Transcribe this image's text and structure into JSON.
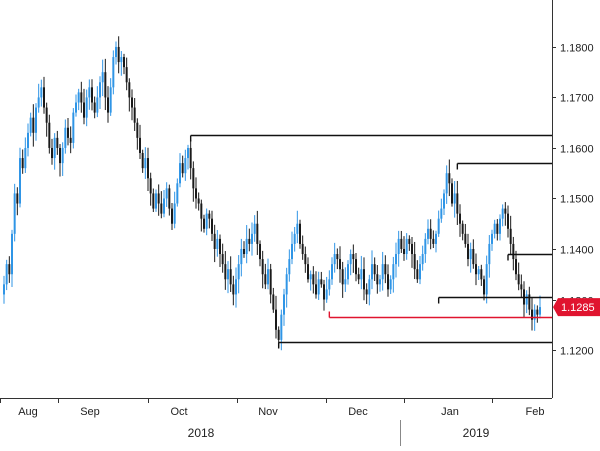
{
  "chart_data": {
    "type": "candlestick",
    "instrument_price_label": "1.1285",
    "current_price": 1.1285,
    "y_ticks": [
      "1.1800",
      "1.1700",
      "1.1600",
      "1.1500",
      "1.1400",
      "1.1300",
      "1.1200"
    ],
    "y_tick_values": [
      1.18,
      1.17,
      1.16,
      1.15,
      1.14,
      1.13,
      1.12
    ],
    "ylim": [
      1.1105,
      1.1885
    ],
    "x_months": [
      "Aug",
      "Sep",
      "Oct",
      "Nov",
      "Dec",
      "Jan",
      "Feb"
    ],
    "x_years": [
      "2018",
      "2019"
    ],
    "grid": false,
    "colors": {
      "up": "#2f95e6",
      "down": "#1a1a1a",
      "level_line": "#111111",
      "current_line": "#e0142f",
      "price_tag": "#e0142f",
      "axis": "#333333"
    },
    "horizontal_levels": [
      {
        "price": 1.1625,
        "from_index": 70
      },
      {
        "price": 1.157,
        "from_index": 170
      },
      {
        "price": 1.139,
        "from_index": 189
      },
      {
        "price": 1.1305,
        "from_index": 163
      },
      {
        "price": 1.1215,
        "from_index": 103
      }
    ],
    "current_level": {
      "price": 1.1265,
      "from_index": 122
    },
    "closes": [
      1.133,
      1.137,
      1.135,
      1.143,
      1.151,
      1.149,
      1.158,
      1.156,
      1.16,
      1.163,
      1.166,
      1.163,
      1.168,
      1.17,
      1.172,
      1.168,
      1.165,
      1.16,
      1.158,
      1.162,
      1.16,
      1.157,
      1.16,
      1.164,
      1.162,
      1.161,
      1.167,
      1.169,
      1.171,
      1.169,
      1.166,
      1.17,
      1.172,
      1.169,
      1.167,
      1.17,
      1.173,
      1.175,
      1.17,
      1.167,
      1.172,
      1.178,
      1.18,
      1.177,
      1.178,
      1.176,
      1.173,
      1.17,
      1.168,
      1.165,
      1.162,
      1.159,
      1.156,
      1.158,
      1.154,
      1.151,
      1.148,
      1.151,
      1.149,
      1.147,
      1.15,
      1.152,
      1.148,
      1.145,
      1.149,
      1.153,
      1.157,
      1.155,
      1.158,
      1.16,
      1.156,
      1.152,
      1.15,
      1.149,
      1.146,
      1.144,
      1.147,
      1.146,
      1.143,
      1.14,
      1.142,
      1.139,
      1.137,
      1.134,
      1.136,
      1.133,
      1.131,
      1.134,
      1.137,
      1.14,
      1.139,
      1.142,
      1.141,
      1.143,
      1.145,
      1.141,
      1.138,
      1.135,
      1.133,
      1.136,
      1.131,
      1.128,
      1.124,
      1.122,
      1.127,
      1.131,
      1.135,
      1.138,
      1.141,
      1.143,
      1.145,
      1.141,
      1.139,
      1.137,
      1.134,
      1.135,
      1.133,
      1.131,
      1.134,
      1.133,
      1.13,
      1.132,
      1.134,
      1.137,
      1.139,
      1.138,
      1.136,
      1.133,
      1.134,
      1.137,
      1.139,
      1.138,
      1.135,
      1.134,
      1.136,
      1.132,
      1.131,
      1.134,
      1.137,
      1.135,
      1.133,
      1.134,
      1.137,
      1.135,
      1.132,
      1.134,
      1.137,
      1.139,
      1.142,
      1.14,
      1.139,
      1.142,
      1.141,
      1.139,
      1.136,
      1.134,
      1.137,
      1.139,
      1.142,
      1.144,
      1.142,
      1.141,
      1.143,
      1.146,
      1.148,
      1.151,
      1.155,
      1.153,
      1.149,
      1.151,
      1.147,
      1.145,
      1.143,
      1.141,
      1.138,
      1.14,
      1.137,
      1.135,
      1.136,
      1.134,
      1.131,
      1.137,
      1.141,
      1.143,
      1.145,
      1.143,
      1.146,
      1.148,
      1.147,
      1.144,
      1.141,
      1.138,
      1.135,
      1.133,
      1.132,
      1.129,
      1.131,
      1.128,
      1.126,
      1.128,
      1.127,
      1.1285
    ]
  }
}
